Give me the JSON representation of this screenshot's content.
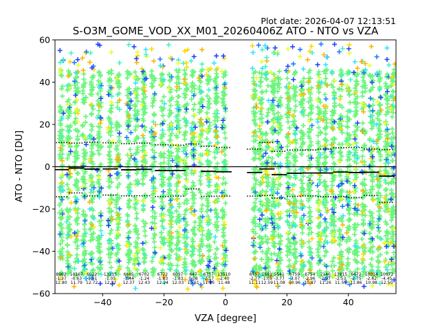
{
  "chart_data": {
    "type": "scatter",
    "title": "S-O3M_GOME_VOD_XX_M01_20260406Z ATO - NTO vs VZA",
    "plot_date": "Plot date: 2026-04-07 12:13:51",
    "xlabel": "VZA [degree]",
    "ylabel": "ATO - NTO [DU]",
    "xlim": [
      -55.5,
      55.5
    ],
    "ylim": [
      -60,
      60
    ],
    "xticks": [
      -40,
      -20,
      0,
      20,
      40
    ],
    "yticks": [
      -60,
      -40,
      -20,
      0,
      20,
      40,
      60
    ],
    "grid": false,
    "reference_line": 0,
    "bins": [
      {
        "vza": -53.5,
        "count": "8962",
        "mean": "-1.37",
        "std": "12.80",
        "lower": -14.2,
        "upper": 11.4
      },
      {
        "vza": -48.5,
        "count": "10167",
        "mean": "-0.63",
        "std": "11.79",
        "lower": -12.4,
        "upper": 11.2
      },
      {
        "vza": -43.5,
        "count": "6522",
        "mean": "-1.11",
        "std": "12.72",
        "lower": -13.8,
        "upper": 11.6
      },
      {
        "vza": -37.5,
        "count": "13215",
        "mean": "-1.05",
        "std": "12.32",
        "lower": -13.4,
        "upper": 11.3
      },
      {
        "vza": -31.5,
        "count": "6665",
        "mean": "-1.44",
        "std": "12.37",
        "lower": -13.8,
        "upper": 10.9
      },
      {
        "vza": -26.5,
        "count": "6702",
        "mean": "-1.24",
        "std": "12.43",
        "lower": -13.7,
        "upper": 11.2
      },
      {
        "vza": -20.5,
        "count": "6722",
        "mean": "-1.83",
        "std": "12.24",
        "lower": -14.1,
        "upper": 10.4
      },
      {
        "vza": -15.5,
        "count": "6097",
        "mean": "-1.83",
        "std": "12.03",
        "lower": -13.9,
        "upper": 10.2
      },
      {
        "vza": -10.5,
        "count": "647",
        "mean": "0.08",
        "std": "10.61",
        "lower": -10.5,
        "upper": 10.7
      },
      {
        "vza": -5.5,
        "count": "6757",
        "mean": "-2.17",
        "std": "11.85",
        "lower": -14.0,
        "upper": 9.7
      },
      {
        "vza": -0.5,
        "count": "13510",
        "mean": "-2.40",
        "std": "11.48",
        "lower": -13.9,
        "upper": 9.1
      },
      {
        "vza": 9.5,
        "count": "6757",
        "mean": "-2.77",
        "std": "11.11",
        "lower": -13.9,
        "upper": 8.3
      },
      {
        "vza": 13.5,
        "count": "1681",
        "mean": "-1.05",
        "std": "12.59",
        "lower": -13.6,
        "upper": 11.5
      },
      {
        "vza": 17.5,
        "count": "5541",
        "mean": "-3.77",
        "std": "11.08",
        "lower": -14.9,
        "upper": 7.3
      },
      {
        "vza": 22.5,
        "count": "6759",
        "mean": "-3.07",
        "std": "10.96",
        "lower": -14.0,
        "upper": 7.9
      },
      {
        "vza": 27.5,
        "count": "6754",
        "mean": "-2.96",
        "std": "10.87",
        "lower": -13.8,
        "upper": 7.9
      },
      {
        "vza": 32.5,
        "count": "7140",
        "mean": "-2.97",
        "std": "11.26",
        "lower": -14.2,
        "upper": 8.3
      },
      {
        "vza": 37.5,
        "count": "13815",
        "mean": "-2.53",
        "std": "11.55",
        "lower": -14.1,
        "upper": 9.0
      },
      {
        "vza": 42.5,
        "count": "6672",
        "mean": "-2.75",
        "std": "11.86",
        "lower": -14.6,
        "upper": 9.1
      },
      {
        "vza": 47.5,
        "count": "10014",
        "mean": "-2.62",
        "std": "10.98",
        "lower": -13.6,
        "upper": 8.4
      },
      {
        "vza": 52.5,
        "count": "10072",
        "mean": "-4.45",
        "std": "12.50",
        "lower": -16.9,
        "upper": 8.1
      }
    ],
    "column_centers": [
      -53.5,
      -51,
      -48.5,
      -46,
      -43.5,
      -41,
      -37.5,
      -35,
      -31.5,
      -29,
      -26.5,
      -23.5,
      -20.5,
      -18,
      -15.5,
      -13,
      -10.5,
      -8,
      -5.5,
      -3,
      -0.5,
      9.5,
      11.5,
      13.5,
      15.5,
      17.5,
      20.5,
      22.5,
      25,
      27.5,
      30.5,
      32.5,
      35,
      37.5,
      40,
      42.5,
      45,
      47.5,
      50,
      52.5,
      54.5
    ],
    "marker_colors": [
      "#6cf57c",
      "#3ef5c8",
      "#32e3ff",
      "#ffd700",
      "#ffb300",
      "#1e7bff",
      "#2244ff",
      "#e8ff2a"
    ]
  }
}
